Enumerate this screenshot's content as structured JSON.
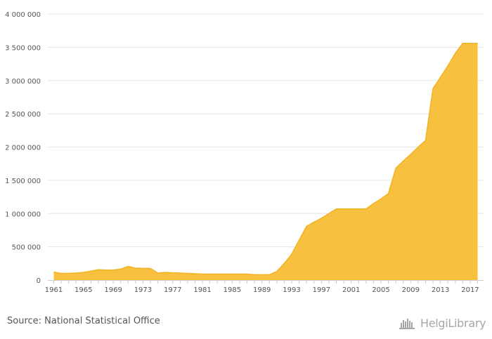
{
  "chart_data": {
    "type": "area",
    "x": [
      1961,
      1962,
      1963,
      1964,
      1965,
      1966,
      1967,
      1968,
      1969,
      1970,
      1971,
      1972,
      1973,
      1974,
      1975,
      1976,
      1977,
      1978,
      1979,
      1980,
      1981,
      1982,
      1983,
      1984,
      1985,
      1986,
      1987,
      1988,
      1989,
      1990,
      1991,
      1992,
      1993,
      1994,
      1995,
      1996,
      1997,
      1998,
      1999,
      2000,
      2001,
      2002,
      2003,
      2004,
      2005,
      2006,
      2007,
      2008,
      2009,
      2010,
      2011,
      2012,
      2013,
      2014,
      2015,
      2016,
      2017,
      2018
    ],
    "series": [
      {
        "values": [
          120000,
          100000,
          100000,
          105000,
          115000,
          135000,
          155000,
          150000,
          150000,
          165000,
          205000,
          180000,
          175000,
          175000,
          105000,
          115000,
          110000,
          105000,
          100000,
          95000,
          90000,
          90000,
          90000,
          90000,
          90000,
          90000,
          90000,
          80000,
          80000,
          80000,
          130000,
          250000,
          390000,
          600000,
          810000,
          870000,
          930000,
          1000000,
          1070000,
          1070000,
          1070000,
          1070000,
          1070000,
          1150000,
          1220000,
          1300000,
          1680000,
          1790000,
          1890000,
          2000000,
          2100000,
          2880000,
          3050000,
          3220000,
          3410000,
          3560000,
          3560000,
          3560000
        ]
      }
    ],
    "xlim": [
      1960.2,
      2018.8
    ],
    "ylim": [
      0,
      4000000
    ],
    "xticks": [
      "1961",
      "1965",
      "1969",
      "1973",
      "1977",
      "1981",
      "1985",
      "1989",
      "1993",
      "1997",
      "2001",
      "2005",
      "2009",
      "2013",
      "2017"
    ],
    "yticks": [
      "0",
      "500 000",
      "1 000 000",
      "1 500 000",
      "2 000 000",
      "2 500 000",
      "3 000 000",
      "3 500 000",
      "4 000 000"
    ],
    "grid": true,
    "colors": {
      "fill": "#f7c03f",
      "line": "#f0b323",
      "grid": "#e6e6e6",
      "axis": "#cccccc"
    }
  },
  "source_text": "Source: National Statistical Office",
  "logo": {
    "text": "HelgiLibrary",
    "icon": "helgi-library-icon"
  }
}
